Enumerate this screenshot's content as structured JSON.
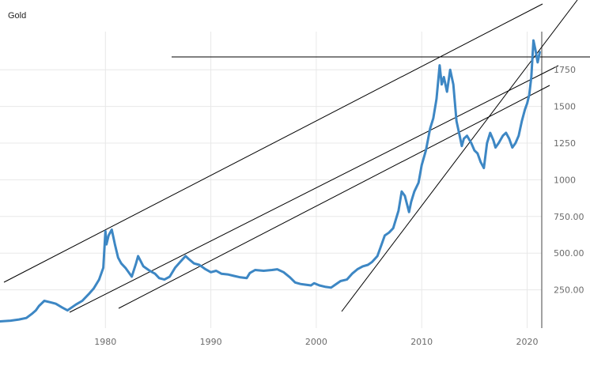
{
  "chart_data": {
    "type": "line",
    "title": "Gold",
    "xlabel": "",
    "ylabel": "",
    "xlim": [
      1970,
      2022
    ],
    "ylim": [
      0,
      2080
    ],
    "grid": true,
    "x_ticks": [
      1980,
      1990,
      2000,
      2010,
      2020
    ],
    "x_tick_labels": [
      "1980",
      "1990",
      "2000",
      "2010",
      "2020"
    ],
    "y_ticks": [
      250,
      500,
      750,
      1000,
      1250,
      1500,
      1750
    ],
    "y_tick_labels": [
      "250.00",
      "500.00",
      "750.00",
      "1000",
      "1250",
      "1500",
      "1750"
    ],
    "series": [
      {
        "color": "#3d87c4",
        "x": [
          1970,
          1971,
          1971.8,
          1972.5,
          1973,
          1973.4,
          1973.7,
          1974.2,
          1974.8,
          1975.3,
          1975.9,
          1976.4,
          1976.7,
          1977.2,
          1977.8,
          1978.4,
          1978.9,
          1979.4,
          1979.8,
          1980.0,
          1980.1,
          1980.3,
          1980.6,
          1980.9,
          1981.2,
          1981.5,
          1981.9,
          1982.3,
          1982.5,
          1982.9,
          1983.1,
          1983.6,
          1984.2,
          1984.7,
          1985.1,
          1985.6,
          1986.1,
          1986.6,
          1987.1,
          1987.6,
          1987.9,
          1988.4,
          1988.9,
          1989.5,
          1990.0,
          1990.5,
          1991.0,
          1991.6,
          1992.2,
          1992.8,
          1993.4,
          1993.7,
          1994.2,
          1995.0,
          1995.8,
          1996.3,
          1996.9,
          1997.5,
          1998.0,
          1998.5,
          1999.0,
          1999.5,
          1999.8,
          2000.3,
          2000.9,
          2001.4,
          2001.8,
          2002.3,
          2002.9,
          2003.4,
          2003.9,
          2004.4,
          2004.9,
          2005.3,
          2005.8,
          2006.2,
          2006.5,
          2006.9,
          2007.3,
          2007.8,
          2008.1,
          2008.4,
          2008.8,
          2009.0,
          2009.3,
          2009.7,
          2010.0,
          2010.4,
          2010.8,
          2011.1,
          2011.4,
          2011.7,
          2011.9,
          2012.1,
          2012.4,
          2012.7,
          2013.0,
          2013.3,
          2013.6,
          2013.8,
          2014.0,
          2014.3,
          2014.7,
          2015.0,
          2015.3,
          2015.6,
          2015.9,
          2016.2,
          2016.5,
          2016.8,
          2017.0,
          2017.3,
          2017.7,
          2018.0,
          2018.3,
          2018.6,
          2018.9,
          2019.2,
          2019.5,
          2019.8,
          2020.0,
          2020.2,
          2020.4,
          2020.6,
          2020.8,
          2021.0,
          2021.2
        ],
        "values": [
          35,
          40,
          48,
          58,
          85,
          110,
          140,
          175,
          165,
          155,
          130,
          110,
          125,
          150,
          175,
          220,
          260,
          320,
          400,
          650,
          560,
          620,
          660,
          560,
          470,
          430,
          400,
          360,
          340,
          430,
          480,
          410,
          380,
          360,
          330,
          320,
          340,
          400,
          440,
          480,
          460,
          430,
          420,
          390,
          370,
          380,
          360,
          355,
          345,
          335,
          330,
          365,
          385,
          380,
          385,
          390,
          370,
          335,
          300,
          290,
          285,
          280,
          295,
          280,
          270,
          265,
          285,
          310,
          320,
          360,
          390,
          410,
          420,
          440,
          480,
          560,
          620,
          640,
          670,
          790,
          920,
          890,
          780,
          850,
          920,
          980,
          1100,
          1200,
          1350,
          1420,
          1550,
          1780,
          1650,
          1700,
          1600,
          1750,
          1650,
          1400,
          1300,
          1230,
          1280,
          1300,
          1250,
          1200,
          1180,
          1120,
          1080,
          1250,
          1320,
          1270,
          1220,
          1250,
          1300,
          1320,
          1280,
          1220,
          1250,
          1300,
          1400,
          1480,
          1520,
          1580,
          1700,
          1950,
          1880,
          1800,
          1870
        ]
      }
    ]
  }
}
